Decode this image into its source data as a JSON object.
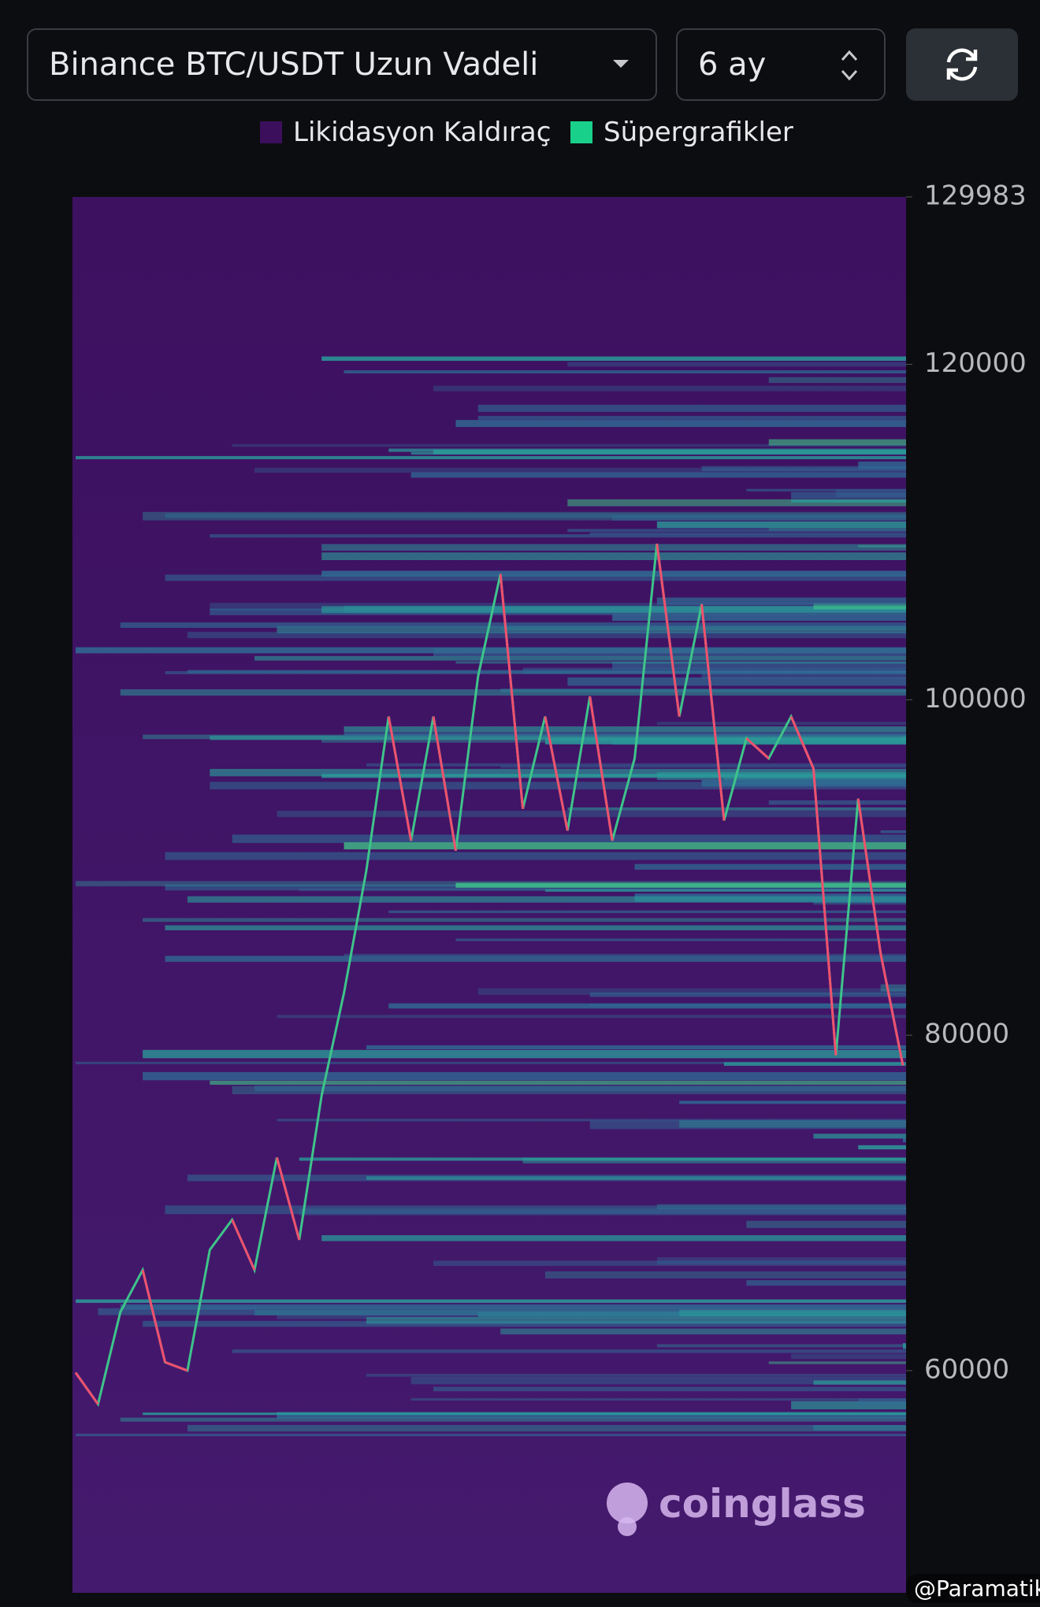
{
  "header": {
    "exchange_select": "Binance BTC/USDT Uzun Vadeli",
    "period_select": "6 ay"
  },
  "chart_data": {
    "type": "heatmap",
    "legend": [
      {
        "name": "Likidasyon Kaldıraç",
        "color": "#3b0f5c"
      },
      {
        "name": "Süpergrafikler",
        "color": "#19d08a"
      }
    ],
    "ylim": [
      46750,
      129983
    ],
    "yticks": [
      60000,
      80000,
      100000,
      120000,
      129983
    ],
    "price": {
      "color": "#3ec48a",
      "values": [
        59880,
        58000,
        63500,
        66000,
        60500,
        60000,
        67200,
        69000,
        66000,
        72700,
        67800,
        76400,
        82500,
        89800,
        99000,
        91600,
        99000,
        91000,
        101400,
        107500,
        93500,
        99000,
        92200,
        100200,
        91600,
        96500,
        109300,
        99000,
        105700,
        92800,
        97700,
        96500,
        99000,
        95900,
        78800,
        94100,
        84900,
        78200
      ]
    },
    "watermark": "coinglass"
  },
  "credit": "@Paramatik"
}
